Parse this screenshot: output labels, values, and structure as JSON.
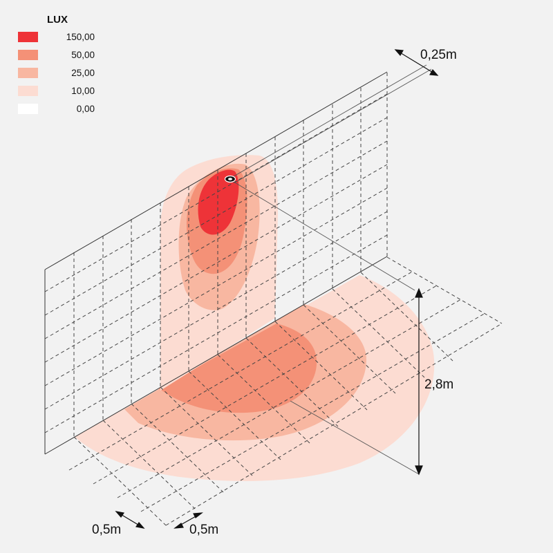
{
  "legend": {
    "title": "LUX",
    "items": [
      {
        "value": "150,00",
        "color": "#ee3338"
      },
      {
        "value": "50,00",
        "color": "#f49177"
      },
      {
        "value": "25,00",
        "color": "#f8b7a1"
      },
      {
        "value": "10,00",
        "color": "#fcdcd2"
      },
      {
        "value": "0,00",
        "color": "#ffffff"
      }
    ]
  },
  "dimensions": {
    "fixture_offset": "0,25m",
    "mount_height": "2,8m",
    "grid_spacing_a": "0,5m",
    "grid_spacing_b": "0,5m"
  },
  "colors": {
    "background": "#f2f2f2",
    "level_150": "#ee3338",
    "level_50": "#f49177",
    "level_25": "#f8b7a1",
    "level_10": "#fcdcd2"
  }
}
